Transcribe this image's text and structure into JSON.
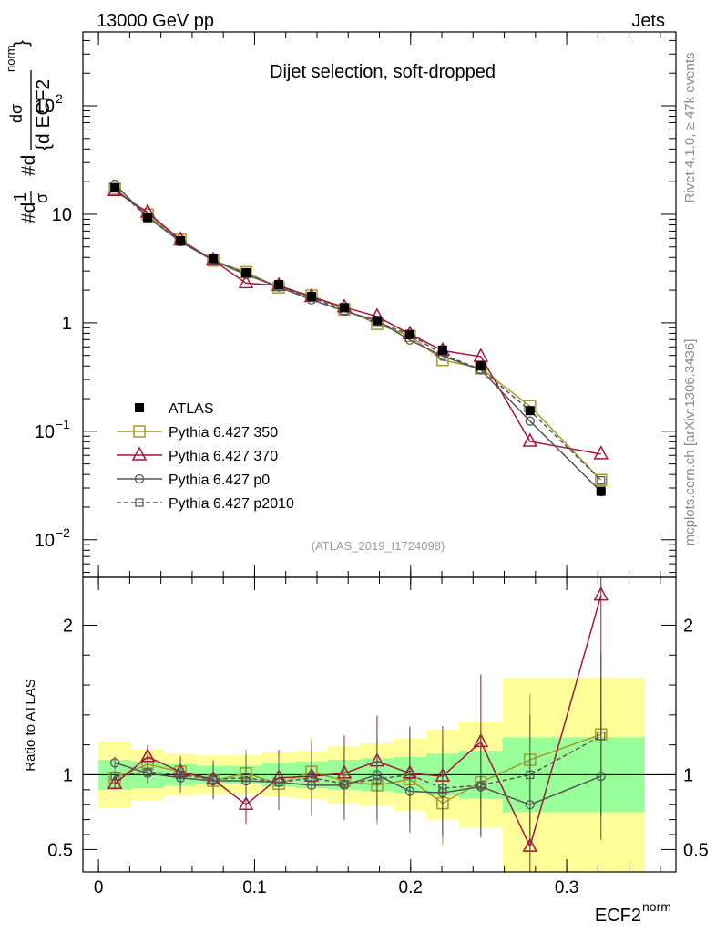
{
  "chart_data": {
    "type": "line",
    "header_left": "13000 GeV pp",
    "header_right": "Jets",
    "title": "Dijet selection, soft-dropped",
    "analysis_id": "(ATLAS_2019_I1724098)",
    "side_label_top": "Rivet 4.1.0, ≥ 47k events",
    "side_label_bottom": "mcplots.cern.ch [arXiv:1306.3436]",
    "ylabel": {
      "part1": "#d",
      "one": "1",
      "sigma1": "σ",
      "part2": "#d",
      "dsig": "dσ",
      "norm": "norm",
      "brace": "{d ECF2",
      "close": "}"
    },
    "xlabel": {
      "base": "ECF2",
      "sup": "norm"
    },
    "ratio_ylabel": "Ratio to ATLAS",
    "xlim": [
      -0.01,
      0.37
    ],
    "ylim_log": [
      0.0045,
      480
    ],
    "ratio_ylim": [
      0.35,
      2.32
    ],
    "x_ticks": [
      {
        "v": 0,
        "label": "0"
      },
      {
        "v": 0.1,
        "label": "0.1"
      },
      {
        "v": 0.2,
        "label": "0.2"
      },
      {
        "v": 0.3,
        "label": "0.3"
      }
    ],
    "y_ticks": [
      {
        "v": 0.01,
        "base": "10",
        "exp": "−2"
      },
      {
        "v": 0.1,
        "base": "10",
        "exp": "−1"
      },
      {
        "v": 1,
        "base": "1",
        "exp": ""
      },
      {
        "v": 10,
        "base": "10",
        "exp": ""
      },
      {
        "v": 100,
        "base": "10",
        "exp": "2"
      }
    ],
    "ratio_ticks": [
      {
        "v": 0.5,
        "label": "0.5"
      },
      {
        "v": 1,
        "label": "1"
      },
      {
        "v": 2,
        "label": "2"
      }
    ],
    "bins": [
      0.0,
      0.021,
      0.042,
      0.063,
      0.084,
      0.105,
      0.126,
      0.147,
      0.168,
      0.189,
      0.21,
      0.231,
      0.259,
      0.294,
      0.35
    ],
    "x": [
      0.0105,
      0.0315,
      0.0525,
      0.0735,
      0.0945,
      0.1155,
      0.1365,
      0.1575,
      0.1785,
      0.1995,
      0.2205,
      0.245,
      0.2765,
      0.322
    ],
    "atlas": {
      "name": "ATLAS",
      "values": [
        17.5,
        9.3,
        5.7,
        3.9,
        2.9,
        2.25,
        1.75,
        1.38,
        1.05,
        0.78,
        0.56,
        0.4,
        0.155,
        0.028
      ],
      "band_inner": [
        0.1,
        0.09,
        0.07,
        0.06,
        0.06,
        0.08,
        0.09,
        0.1,
        0.11,
        0.12,
        0.14,
        0.16,
        0.25,
        0.25
      ],
      "band_outer": [
        0.22,
        0.17,
        0.14,
        0.13,
        0.13,
        0.15,
        0.16,
        0.19,
        0.21,
        0.24,
        0.3,
        0.35,
        0.65,
        0.65
      ]
    },
    "series": [
      {
        "name": "Pythia 6.427 350",
        "color": "#a39b2a",
        "marker": "square-open",
        "dash": "",
        "ratio": [
          0.98,
          1.07,
          1.02,
          0.96,
          1.01,
          0.94,
          1.02,
          0.96,
          0.93,
          0.97,
          0.81,
          0.95,
          1.1,
          1.27
        ]
      },
      {
        "name": "Pythia 6.427 370",
        "color": "#a4163b",
        "marker": "triangle-open",
        "dash": "",
        "ratio": [
          0.94,
          1.12,
          1.02,
          0.97,
          0.8,
          0.98,
          0.99,
          1.01,
          1.09,
          1.01,
          0.99,
          1.22,
          0.52,
          2.2
        ]
      },
      {
        "name": "Pythia 6.427 p0",
        "color": "#555555",
        "marker": "circle-open",
        "dash": "",
        "ratio": [
          1.08,
          1.01,
          0.98,
          0.96,
          0.96,
          0.95,
          0.93,
          0.93,
          1.0,
          0.89,
          0.88,
          0.92,
          0.8,
          0.99
        ]
      },
      {
        "name": "Pythia 6.427 p2010",
        "color": "#555555",
        "marker": "square-small",
        "dash": "5,3",
        "ratio": [
          0.99,
          1.02,
          1.0,
          0.97,
          0.98,
          0.95,
          0.98,
          0.94,
          0.97,
          1.0,
          0.91,
          0.93,
          1.0,
          1.26
        ]
      }
    ]
  }
}
